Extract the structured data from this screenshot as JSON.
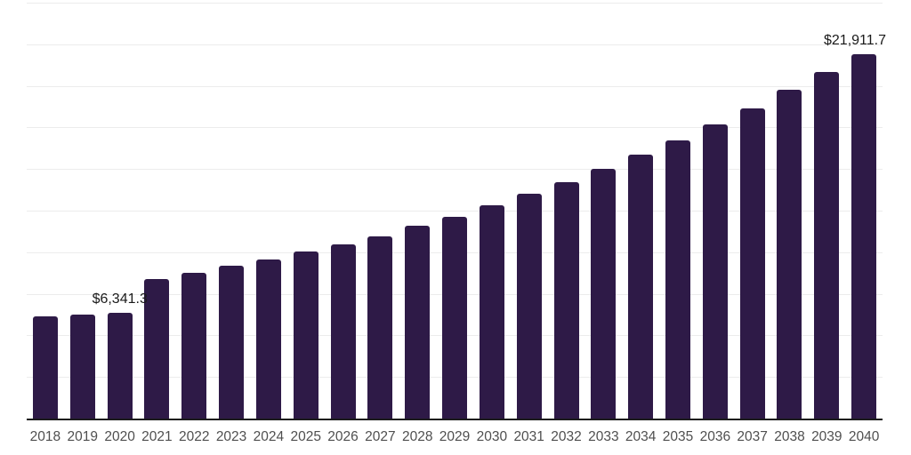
{
  "chart_data": {
    "type": "bar",
    "title": "",
    "xlabel": "",
    "ylabel": "",
    "categories": [
      "2018",
      "2019",
      "2020",
      "2021",
      "2022",
      "2023",
      "2024",
      "2025",
      "2026",
      "2027",
      "2028",
      "2029",
      "2030",
      "2031",
      "2032",
      "2033",
      "2034",
      "2035",
      "2036",
      "2037",
      "2038",
      "2039",
      "2040"
    ],
    "values": [
      6150,
      6250,
      6341.3,
      8410,
      8760,
      9200,
      9560,
      10040,
      10480,
      10950,
      11580,
      12130,
      12830,
      13510,
      14220,
      15000,
      15880,
      16730,
      17700,
      18620,
      19770,
      20850,
      21911.7
    ],
    "ylim": [
      0,
      25000
    ],
    "gridline_step": 2500,
    "grid": true,
    "legend": "none",
    "data_labels": [
      {
        "category": "2020",
        "text": "$6,341.3"
      },
      {
        "category": "2040",
        "text": "$21,911.7"
      }
    ]
  },
  "colors": {
    "bar": "#2e1a47",
    "gridline": "#ececec",
    "axis_line": "#1c1c1c",
    "tick_label": "#4f4f4f",
    "data_label": "#1a1a1a",
    "background": "#ffffff"
  }
}
